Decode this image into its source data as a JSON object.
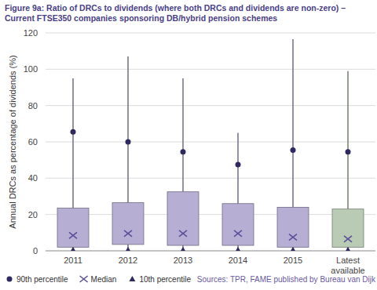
{
  "chart_data": {
    "type": "box",
    "title": "Figure 9a: Ratio of DRCs to dividends (where both DRCs and dividends are non-zero) – Current FTSE350 companies sponsoring DB/hybrid pension schemes",
    "ylabel": "Annual DRCs as percentage of dividends (%)",
    "source": "Sources: TPR, FAME published by Bureau van Dijk",
    "categories": [
      "2011",
      "2012",
      "2013",
      "2014",
      "2015",
      "Latest available"
    ],
    "colors": [
      "#b7aed4",
      "#b7aed4",
      "#b7aed4",
      "#b7aed4",
      "#b7aed4",
      "#b9cbb5"
    ],
    "boxes": {
      "min": [
        0,
        0,
        0,
        0,
        0,
        0
      ],
      "q1": [
        2,
        3.5,
        3,
        3,
        2,
        2
      ],
      "q3": [
        23.5,
        26.5,
        32.5,
        26,
        24,
        23
      ],
      "max": [
        95,
        107,
        95,
        65,
        116.5,
        99
      ]
    },
    "series": [
      {
        "name": "90th percentile",
        "marker": "circle",
        "color": "#2e2a60",
        "values": [
          65.5,
          60,
          54.5,
          47.5,
          55.5,
          54.5
        ]
      },
      {
        "name": "Median",
        "marker": "x",
        "color": "#5d4f99",
        "values": [
          8.5,
          9.5,
          9.5,
          9.5,
          7.5,
          6.5
        ]
      },
      {
        "name": "10th percentile",
        "marker": "triangle",
        "color": "#2e2a60",
        "values": [
          0.5,
          0.5,
          0.5,
          0.5,
          0.5,
          0.5
        ]
      }
    ],
    "ylim": [
      0,
      120
    ],
    "yticks": [
      0,
      20,
      40,
      60,
      80,
      100,
      120
    ],
    "grid": true,
    "legend": "bottom"
  }
}
